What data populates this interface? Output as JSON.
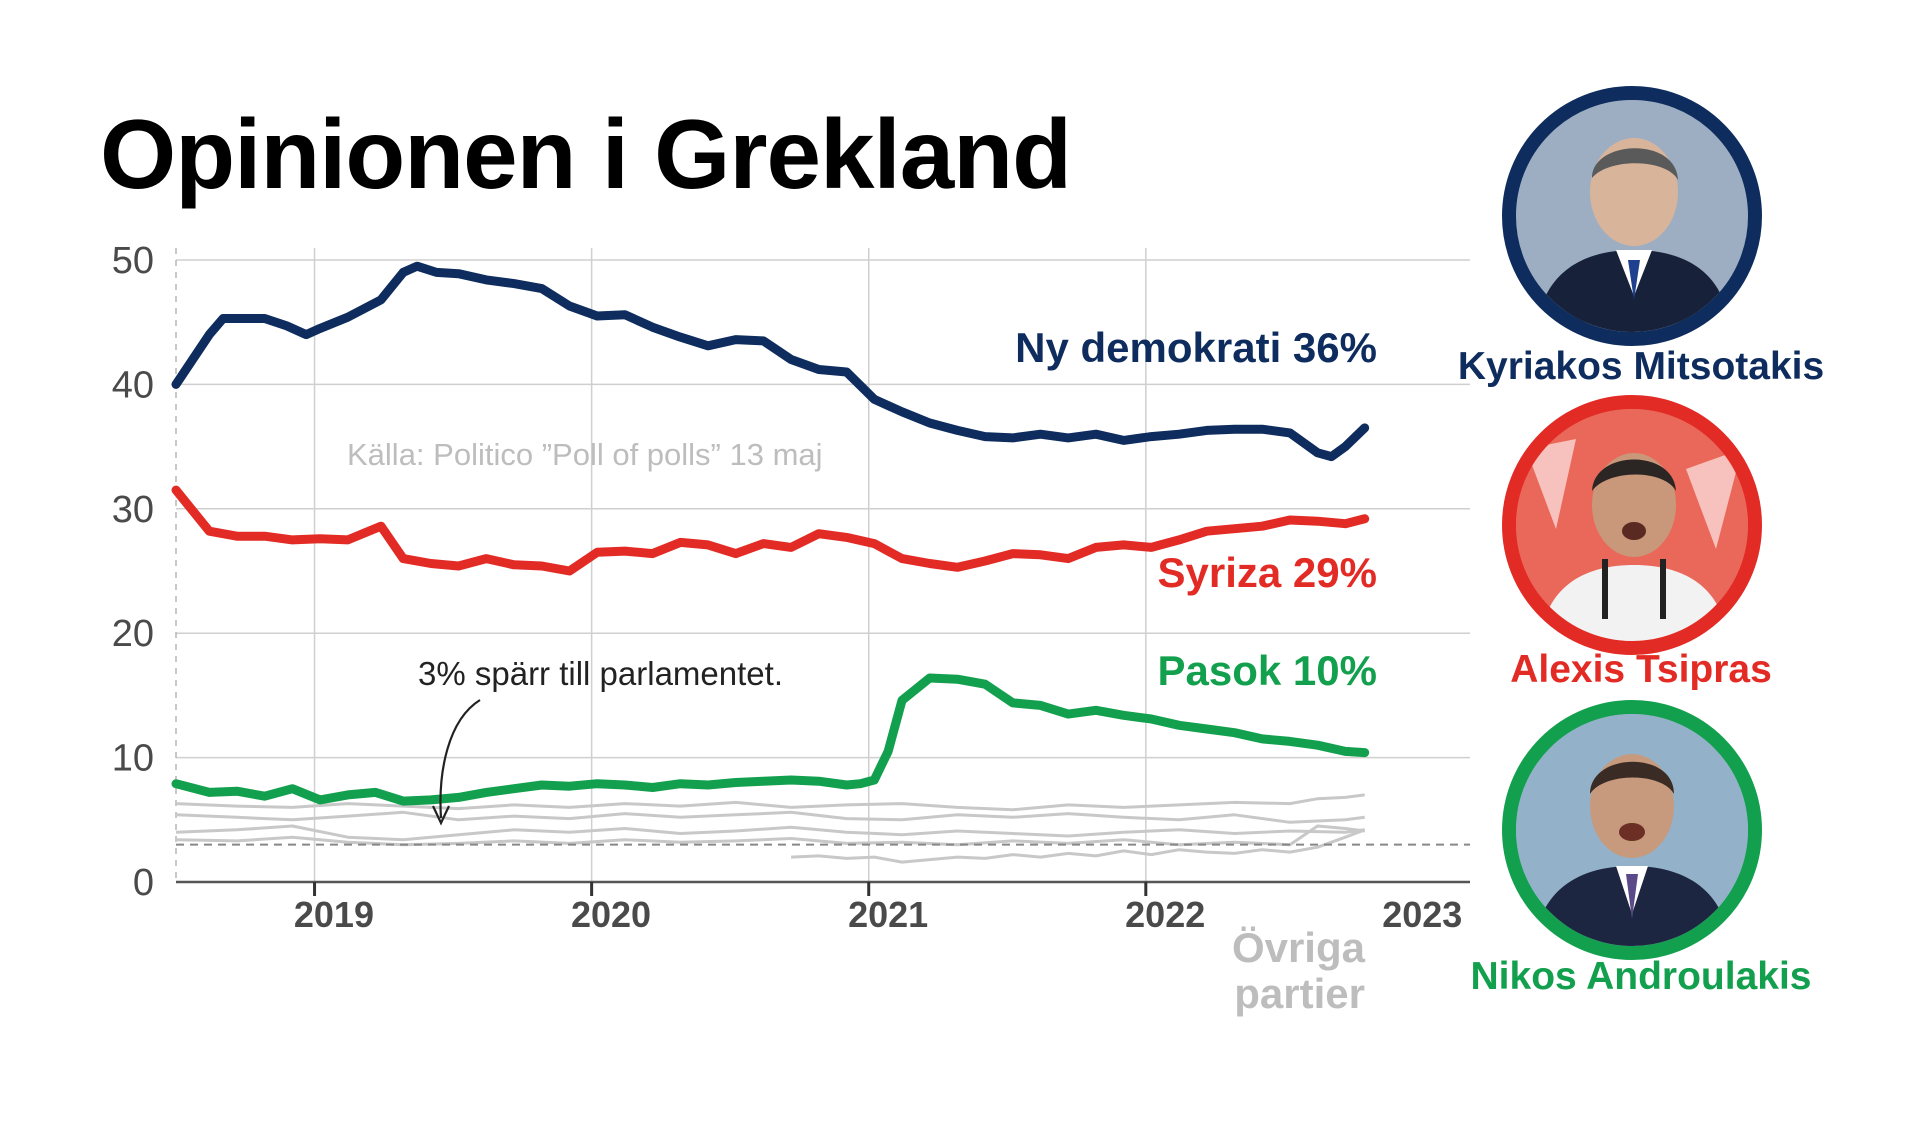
{
  "title": "Opinionen i Grekland",
  "source_note": "Källa: Politico ”Poll of polls” 13 maj",
  "threshold_note": "3% spärr till parlamentet.",
  "others_label": [
    "Övriga",
    "partier"
  ],
  "colors": {
    "nd": "#0e2d5e",
    "syriza": "#e32b25",
    "pasok": "#13a04e",
    "others": "#c8c8c8",
    "grid": "#cfcfcf",
    "axis": "#666666",
    "text_grey": "#bdbdbd"
  },
  "people": [
    {
      "name": "Kyriakos Mitsotakis",
      "party": "nd",
      "color": "#0e2d5e",
      "bg": "#c9d3df"
    },
    {
      "name": "Alexis Tsipras",
      "party": "syriza",
      "color": "#e32b25",
      "bg": "#ee8a7e"
    },
    {
      "name": "Nikos Androulakis",
      "party": "pasok",
      "color": "#13a04e",
      "bg": "#9fb6c8"
    }
  ],
  "chart_data": {
    "type": "line",
    "title": "Opinionen i Grekland",
    "xlabel": "",
    "ylabel": "",
    "ylim": [
      0,
      50
    ],
    "xlim": [
      2018.68,
      2023.35
    ],
    "yticks": [
      0,
      10,
      20,
      30,
      40,
      50
    ],
    "xtick_labels": [
      "2019",
      "2020",
      "2021",
      "2022",
      "2023"
    ],
    "xtick_positions": [
      2019.25,
      2020.25,
      2021.25,
      2022.25,
      2023.25
    ],
    "year_boundaries": [
      2019.18,
      2020.18,
      2021.18,
      2022.18,
      2023.18
    ],
    "grid": true,
    "threshold": 3,
    "series": [
      {
        "key": "nd",
        "name": "Ny demokrati 36%",
        "color": "#0e2d5e",
        "emphasis": true,
        "x": [
          2018.68,
          2018.8,
          2018.85,
          2019.0,
          2019.08,
          2019.15,
          2019.2,
          2019.3,
          2019.42,
          2019.5,
          2019.55,
          2019.62,
          2019.7,
          2019.8,
          2019.9,
          2020.0,
          2020.1,
          2020.2,
          2020.3,
          2020.4,
          2020.5,
          2020.6,
          2020.7,
          2020.8,
          2020.9,
          2021.0,
          2021.1,
          2021.2,
          2021.3,
          2021.4,
          2021.5,
          2021.6,
          2021.7,
          2021.8,
          2021.9,
          2022.0,
          2022.1,
          2022.2,
          2022.3,
          2022.4,
          2022.5,
          2022.6,
          2022.7,
          2022.8,
          2022.85,
          2022.9,
          2022.97
        ],
        "values": [
          40.0,
          44.0,
          45.3,
          45.3,
          44.7,
          44.0,
          44.5,
          45.4,
          46.8,
          49.0,
          49.5,
          49.0,
          48.9,
          48.4,
          48.1,
          47.7,
          46.3,
          45.5,
          45.6,
          44.6,
          43.8,
          43.1,
          43.6,
          43.5,
          42.0,
          41.2,
          41.0,
          38.8,
          37.8,
          36.9,
          36.3,
          35.8,
          35.7,
          36.0,
          35.7,
          36.0,
          35.5,
          35.8,
          36.0,
          36.3,
          36.4,
          36.4,
          36.1,
          34.5,
          34.2,
          35.0,
          36.5
        ]
      },
      {
        "key": "syriza",
        "name": "Syriza 29%",
        "color": "#e32b25",
        "emphasis": true,
        "x": [
          2018.68,
          2018.8,
          2018.9,
          2019.0,
          2019.1,
          2019.2,
          2019.3,
          2019.42,
          2019.5,
          2019.6,
          2019.7,
          2019.8,
          2019.9,
          2020.0,
          2020.1,
          2020.2,
          2020.3,
          2020.4,
          2020.5,
          2020.6,
          2020.7,
          2020.8,
          2020.9,
          2021.0,
          2021.1,
          2021.2,
          2021.3,
          2021.4,
          2021.5,
          2021.6,
          2021.7,
          2021.8,
          2021.9,
          2022.0,
          2022.1,
          2022.2,
          2022.3,
          2022.4,
          2022.5,
          2022.6,
          2022.7,
          2022.8,
          2022.9,
          2022.97
        ],
        "values": [
          31.5,
          28.2,
          27.8,
          27.8,
          27.5,
          27.6,
          27.5,
          28.6,
          26.0,
          25.6,
          25.4,
          26.0,
          25.5,
          25.4,
          25.0,
          26.5,
          26.6,
          26.4,
          27.3,
          27.1,
          26.4,
          27.2,
          26.9,
          28.0,
          27.7,
          27.2,
          26.0,
          25.6,
          25.3,
          25.8,
          26.4,
          26.3,
          26.0,
          26.9,
          27.1,
          26.9,
          27.5,
          28.2,
          28.4,
          28.6,
          29.1,
          29.0,
          28.8,
          29.2
        ]
      },
      {
        "key": "pasok",
        "name": "Pasok 10%",
        "color": "#13a04e",
        "emphasis": true,
        "x": [
          2018.68,
          2018.8,
          2018.9,
          2019.0,
          2019.1,
          2019.2,
          2019.3,
          2019.4,
          2019.5,
          2019.6,
          2019.7,
          2019.8,
          2019.9,
          2020.0,
          2020.1,
          2020.2,
          2020.3,
          2020.4,
          2020.5,
          2020.6,
          2020.7,
          2020.8,
          2020.9,
          2021.0,
          2021.1,
          2021.15,
          2021.2,
          2021.25,
          2021.3,
          2021.4,
          2021.5,
          2021.6,
          2021.7,
          2021.8,
          2021.9,
          2022.0,
          2022.1,
          2022.2,
          2022.3,
          2022.4,
          2022.5,
          2022.6,
          2022.7,
          2022.8,
          2022.9,
          2022.97
        ],
        "values": [
          7.9,
          7.2,
          7.3,
          6.9,
          7.5,
          6.6,
          7.0,
          7.2,
          6.5,
          6.6,
          6.8,
          7.2,
          7.5,
          7.8,
          7.7,
          7.9,
          7.8,
          7.6,
          7.9,
          7.8,
          8.0,
          8.1,
          8.2,
          8.1,
          7.8,
          7.9,
          8.2,
          10.5,
          14.6,
          16.4,
          16.3,
          15.9,
          14.4,
          14.2,
          13.5,
          13.8,
          13.4,
          13.1,
          12.6,
          12.3,
          12.0,
          11.5,
          11.3,
          11.0,
          10.5,
          10.4
        ]
      },
      {
        "key": "o1",
        "name": "",
        "color": "#c8c8c8",
        "emphasis": false,
        "x": [
          2018.68,
          2018.9,
          2019.1,
          2019.3,
          2019.5,
          2019.7,
          2019.9,
          2020.1,
          2020.3,
          2020.5,
          2020.7,
          2020.9,
          2021.1,
          2021.3,
          2021.5,
          2021.7,
          2021.9,
          2022.1,
          2022.3,
          2022.5,
          2022.7,
          2022.8,
          2022.9,
          2022.97
        ],
        "values": [
          6.3,
          6.1,
          6.0,
          6.3,
          6.1,
          5.9,
          6.2,
          6.0,
          6.3,
          6.1,
          6.4,
          6.0,
          6.2,
          6.3,
          6.0,
          5.8,
          6.2,
          6.0,
          6.2,
          6.4,
          6.3,
          6.7,
          6.8,
          7.0
        ]
      },
      {
        "key": "o2",
        "name": "",
        "color": "#c8c8c8",
        "emphasis": false,
        "x": [
          2018.68,
          2018.9,
          2019.1,
          2019.3,
          2019.5,
          2019.7,
          2019.9,
          2020.1,
          2020.3,
          2020.5,
          2020.7,
          2020.9,
          2021.1,
          2021.3,
          2021.5,
          2021.7,
          2021.9,
          2022.1,
          2022.3,
          2022.5,
          2022.7,
          2022.9,
          2022.97
        ],
        "values": [
          5.4,
          5.2,
          5.0,
          5.3,
          5.6,
          5.0,
          5.3,
          5.1,
          5.5,
          5.2,
          5.4,
          5.6,
          5.1,
          5.0,
          5.4,
          5.2,
          5.5,
          5.2,
          5.0,
          5.4,
          4.8,
          5.0,
          5.2
        ]
      },
      {
        "key": "o3",
        "name": "",
        "color": "#c8c8c8",
        "emphasis": false,
        "x": [
          2018.68,
          2018.9,
          2019.1,
          2019.3,
          2019.5,
          2019.7,
          2019.9,
          2020.1,
          2020.3,
          2020.5,
          2020.7,
          2020.9,
          2021.1,
          2021.3,
          2021.5,
          2021.7,
          2021.9,
          2022.1,
          2022.3,
          2022.5,
          2022.7,
          2022.9,
          2022.97
        ],
        "values": [
          4.0,
          4.2,
          4.5,
          3.6,
          3.4,
          3.8,
          4.2,
          4.0,
          4.3,
          3.9,
          4.1,
          4.4,
          4.0,
          3.8,
          4.1,
          3.9,
          3.7,
          4.0,
          4.2,
          3.9,
          4.1,
          4.0,
          4.2
        ]
      },
      {
        "key": "o4",
        "name": "",
        "color": "#c8c8c8",
        "emphasis": false,
        "x": [
          2018.68,
          2018.9,
          2019.1,
          2019.3,
          2019.5,
          2019.7,
          2019.9,
          2020.1,
          2020.3,
          2020.5,
          2020.7,
          2020.9,
          2021.1,
          2021.3,
          2021.5,
          2021.7,
          2021.9,
          2022.1,
          2022.3,
          2022.5,
          2022.7,
          2022.8,
          2022.9,
          2022.97
        ],
        "values": [
          3.4,
          3.3,
          3.6,
          3.2,
          3.0,
          3.1,
          3.3,
          3.1,
          3.4,
          3.2,
          3.3,
          3.5,
          3.1,
          3.2,
          3.0,
          3.3,
          3.1,
          3.4,
          3.0,
          3.2,
          3.0,
          4.5,
          4.3,
          4.1
        ]
      },
      {
        "key": "o5",
        "name": "",
        "color": "#c8c8c8",
        "emphasis": false,
        "x": [
          2020.9,
          2021.0,
          2021.1,
          2021.2,
          2021.3,
          2021.4,
          2021.5,
          2021.6,
          2021.7,
          2021.8,
          2021.9,
          2022.0,
          2022.1,
          2022.2,
          2022.3,
          2022.4,
          2022.5,
          2022.6,
          2022.7,
          2022.8,
          2022.9,
          2022.97
        ],
        "values": [
          2.0,
          2.1,
          1.9,
          2.0,
          1.6,
          1.8,
          2.0,
          1.9,
          2.2,
          2.0,
          2.3,
          2.1,
          2.5,
          2.2,
          2.6,
          2.4,
          2.3,
          2.6,
          2.4,
          2.8,
          3.6,
          4.2
        ]
      }
    ]
  }
}
